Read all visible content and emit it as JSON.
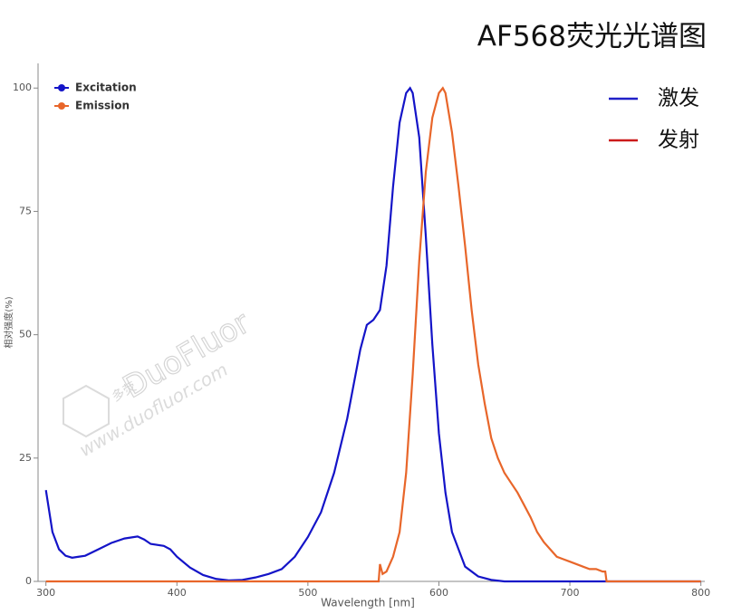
{
  "chart_data": {
    "type": "line",
    "title": "AF568荧光光谱图",
    "x_label": "Wavelength [nm]",
    "y_label": "相对强度(%)",
    "xlim": [
      294,
      803
    ],
    "ylim": [
      0,
      105
    ],
    "xticks": [
      300,
      400,
      500,
      600,
      700,
      800
    ],
    "yticks": [
      0,
      25,
      50,
      75,
      100
    ],
    "series": [
      {
        "name": "Excitation",
        "color": "#1414c8",
        "x": [
          300,
          305,
          310,
          315,
          320,
          325,
          330,
          340,
          350,
          360,
          370,
          375,
          380,
          390,
          395,
          400,
          410,
          420,
          430,
          440,
          450,
          460,
          470,
          480,
          490,
          500,
          510,
          520,
          530,
          540,
          545,
          550,
          555,
          560,
          565,
          570,
          575,
          578,
          580,
          585,
          590,
          595,
          600,
          605,
          610,
          620,
          630,
          640,
          650,
          700,
          800
        ],
        "values": [
          18.5,
          10,
          6.5,
          5.2,
          4.8,
          5,
          5.2,
          6.5,
          7.8,
          8.7,
          9.1,
          8.5,
          7.6,
          7.2,
          6.5,
          5,
          2.8,
          1.3,
          0.5,
          0.2,
          0.3,
          0.8,
          1.5,
          2.5,
          5,
          9,
          14,
          22,
          33,
          47,
          52,
          53,
          55,
          64,
          80,
          93,
          99,
          100,
          99,
          90,
          70,
          48,
          30,
          18,
          10,
          3,
          1,
          0.3,
          0,
          0,
          0
        ]
      },
      {
        "name": "Emission",
        "color": "#e8662a",
        "x": [
          300,
          554,
          555,
          557,
          560,
          565,
          570,
          575,
          580,
          585,
          590,
          595,
          600,
          603,
          605,
          610,
          615,
          620,
          625,
          630,
          635,
          640,
          645,
          650,
          655,
          660,
          665,
          670,
          675,
          680,
          685,
          690,
          695,
          700,
          705,
          710,
          715,
          720,
          725,
          727,
          728,
          800
        ],
        "values": [
          0,
          0,
          3.5,
          1.5,
          2,
          5,
          10,
          22,
          42,
          65,
          83,
          94,
          99,
          100,
          99,
          91,
          80,
          68,
          55,
          44,
          36,
          29,
          25,
          22,
          20,
          18,
          15.5,
          13,
          10,
          8,
          6.5,
          5,
          4.5,
          4,
          3.5,
          3,
          2.5,
          2.5,
          2,
          2,
          0,
          0
        ]
      }
    ],
    "legend_corner": "top-left",
    "side_legend": [
      {
        "name": "激发",
        "color": "#2020c8"
      },
      {
        "name": "发射",
        "color": "#cc1a1a"
      }
    ],
    "watermark": [
      "DuoFluor",
      "www.duofluor.com",
      "多荧"
    ]
  }
}
